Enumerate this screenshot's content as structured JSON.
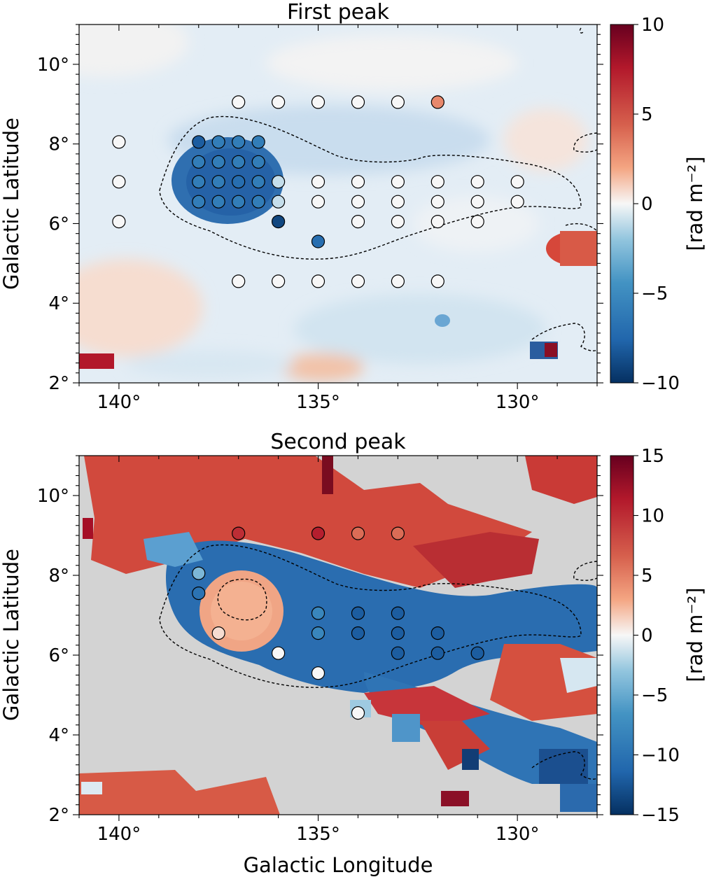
{
  "figure": {
    "xlabel": "Galactic Longitude"
  },
  "cmap": {
    "low": "#0b2f6b",
    "mid_low": "#3a7fc0",
    "mid": "#f7f7f7",
    "mid_high": "#e8735a",
    "high": "#7b0a1e",
    "nan": "#d3d3d3",
    "contour": "#000000"
  },
  "chart_data": [
    {
      "type": "heatmap",
      "title": "First peak",
      "xlabel": "",
      "ylabel": "Galactic Latitude",
      "xlim": [
        141,
        128
      ],
      "ylim": [
        2,
        11
      ],
      "xticks": [
        140,
        135,
        130
      ],
      "xtick_labels": [
        "140°",
        "135°",
        "130°"
      ],
      "yticks": [
        2,
        4,
        6,
        8,
        10
      ],
      "ytick_labels": [
        "2°",
        "4°",
        "6°",
        "8°",
        "10°"
      ],
      "colorbar": {
        "label": "[rad m⁻²]",
        "range": [
          -10,
          10
        ],
        "ticks": [
          10,
          5,
          0,
          -5,
          -10
        ],
        "tick_labels": [
          "10",
          "5",
          "0",
          "−5",
          "−10"
        ]
      },
      "background": "mostly light blue (slightly negative RM) with warmer patches near the edges",
      "features": [
        {
          "name": "blob",
          "l": 137,
          "b": 7.3,
          "rm": -7.5
        },
        {
          "name": "east-patch",
          "l": 128.6,
          "b": 5.7,
          "rm": 7
        },
        {
          "name": "south-patch",
          "l": 135,
          "b": 2.5,
          "rm": 3
        },
        {
          "name": "corner-patch",
          "l": 140.6,
          "b": 2.5,
          "rm": 9
        }
      ],
      "points": [
        {
          "l": 137,
          "b": 9.05,
          "rm": 0
        },
        {
          "l": 136,
          "b": 9.05,
          "rm": 0
        },
        {
          "l": 135,
          "b": 9.05,
          "rm": 0
        },
        {
          "l": 134,
          "b": 9.05,
          "rm": 0
        },
        {
          "l": 133,
          "b": 9.05,
          "rm": 0
        },
        {
          "l": 132,
          "b": 9.05,
          "rm": 3
        },
        {
          "l": 140,
          "b": 8.05,
          "rm": 0
        },
        {
          "l": 138,
          "b": 8.05,
          "rm": -8
        },
        {
          "l": 137.5,
          "b": 8.05,
          "rm": -6
        },
        {
          "l": 137,
          "b": 8.05,
          "rm": -6
        },
        {
          "l": 136.5,
          "b": 8.05,
          "rm": -6
        },
        {
          "l": 138,
          "b": 7.55,
          "rm": -6
        },
        {
          "l": 137.5,
          "b": 7.55,
          "rm": -6
        },
        {
          "l": 137,
          "b": 7.55,
          "rm": -6
        },
        {
          "l": 136.5,
          "b": 7.55,
          "rm": -6
        },
        {
          "l": 140,
          "b": 7.05,
          "rm": 0
        },
        {
          "l": 138,
          "b": 7.05,
          "rm": -6
        },
        {
          "l": 137.5,
          "b": 7.05,
          "rm": -6
        },
        {
          "l": 137,
          "b": 7.05,
          "rm": -7
        },
        {
          "l": 136.5,
          "b": 7.05,
          "rm": -6
        },
        {
          "l": 136,
          "b": 7.05,
          "rm": -1
        },
        {
          "l": 135,
          "b": 7.05,
          "rm": 0
        },
        {
          "l": 134,
          "b": 7.05,
          "rm": 0
        },
        {
          "l": 133,
          "b": 7.05,
          "rm": 0
        },
        {
          "l": 132,
          "b": 7.05,
          "rm": 0
        },
        {
          "l": 131,
          "b": 7.05,
          "rm": 0
        },
        {
          "l": 130,
          "b": 7.05,
          "rm": 0
        },
        {
          "l": 138,
          "b": 6.55,
          "rm": -6
        },
        {
          "l": 137.5,
          "b": 6.55,
          "rm": -6
        },
        {
          "l": 137,
          "b": 6.55,
          "rm": -6
        },
        {
          "l": 136.5,
          "b": 6.55,
          "rm": -6
        },
        {
          "l": 136,
          "b": 6.55,
          "rm": -1
        },
        {
          "l": 135,
          "b": 6.55,
          "rm": 0
        },
        {
          "l": 134,
          "b": 6.55,
          "rm": 0
        },
        {
          "l": 133,
          "b": 6.55,
          "rm": 0
        },
        {
          "l": 132,
          "b": 6.55,
          "rm": 0
        },
        {
          "l": 131,
          "b": 6.55,
          "rm": 0
        },
        {
          "l": 130,
          "b": 6.55,
          "rm": 0
        },
        {
          "l": 140,
          "b": 6.05,
          "rm": 0
        },
        {
          "l": 136,
          "b": 6.05,
          "rm": -9
        },
        {
          "l": 134,
          "b": 6.05,
          "rm": 0
        },
        {
          "l": 133,
          "b": 6.05,
          "rm": 0
        },
        {
          "l": 132,
          "b": 6.05,
          "rm": 0
        },
        {
          "l": 131,
          "b": 6.05,
          "rm": 0
        },
        {
          "l": 135,
          "b": 5.55,
          "rm": -7
        },
        {
          "l": 137,
          "b": 4.55,
          "rm": 0
        },
        {
          "l": 136,
          "b": 4.55,
          "rm": 0
        },
        {
          "l": 135,
          "b": 4.55,
          "rm": 0
        },
        {
          "l": 134,
          "b": 4.55,
          "rm": 0
        },
        {
          "l": 133,
          "b": 4.55,
          "rm": 0
        },
        {
          "l": 132,
          "b": 4.55,
          "rm": 0
        }
      ]
    },
    {
      "type": "heatmap",
      "title": "Second peak",
      "xlabel": "Galactic Longitude",
      "ylabel": "Galactic Latitude",
      "xlim": [
        141,
        128
      ],
      "ylim": [
        2,
        11
      ],
      "xticks": [
        140,
        135,
        130
      ],
      "xtick_labels": [
        "140°",
        "135°",
        "130°"
      ],
      "yticks": [
        2,
        4,
        6,
        8,
        10
      ],
      "ytick_labels": [
        "2°",
        "4°",
        "6°",
        "8°",
        "10°"
      ],
      "colorbar": {
        "label": "[rad m⁻²]",
        "range": [
          -15,
          15
        ],
        "ticks": [
          15,
          10,
          5,
          0,
          -5,
          -10,
          -15
        ],
        "tick_labels": [
          "15",
          "10",
          "5",
          "0",
          "−5",
          "−10",
          "−15"
        ]
      },
      "background": "grey (no second peak) with a red band in the north and a blue band along the filament",
      "points": [
        {
          "l": 137,
          "b": 9.05,
          "rm": 10
        },
        {
          "l": 135,
          "b": 9.05,
          "rm": 11
        },
        {
          "l": 134,
          "b": 9.05,
          "rm": 6
        },
        {
          "l": 133,
          "b": 9.05,
          "rm": 6
        },
        {
          "l": 138,
          "b": 8.05,
          "rm": -4
        },
        {
          "l": 138,
          "b": 7.55,
          "rm": -10
        },
        {
          "l": 135,
          "b": 7.05,
          "rm": -8
        },
        {
          "l": 134,
          "b": 7.05,
          "rm": -12
        },
        {
          "l": 133,
          "b": 7.05,
          "rm": -12
        },
        {
          "l": 137.5,
          "b": 6.55,
          "rm": 1
        },
        {
          "l": 135,
          "b": 6.55,
          "rm": -8
        },
        {
          "l": 134,
          "b": 6.55,
          "rm": -12
        },
        {
          "l": 133,
          "b": 6.55,
          "rm": -12
        },
        {
          "l": 132,
          "b": 6.55,
          "rm": -12
        },
        {
          "l": 136,
          "b": 6.05,
          "rm": 0
        },
        {
          "l": 133,
          "b": 6.05,
          "rm": -12
        },
        {
          "l": 132,
          "b": 6.05,
          "rm": -12
        },
        {
          "l": 131,
          "b": 6.05,
          "rm": -12
        },
        {
          "l": 135,
          "b": 5.55,
          "rm": 0
        },
        {
          "l": 134,
          "b": 4.55,
          "rm": 0
        }
      ]
    }
  ]
}
